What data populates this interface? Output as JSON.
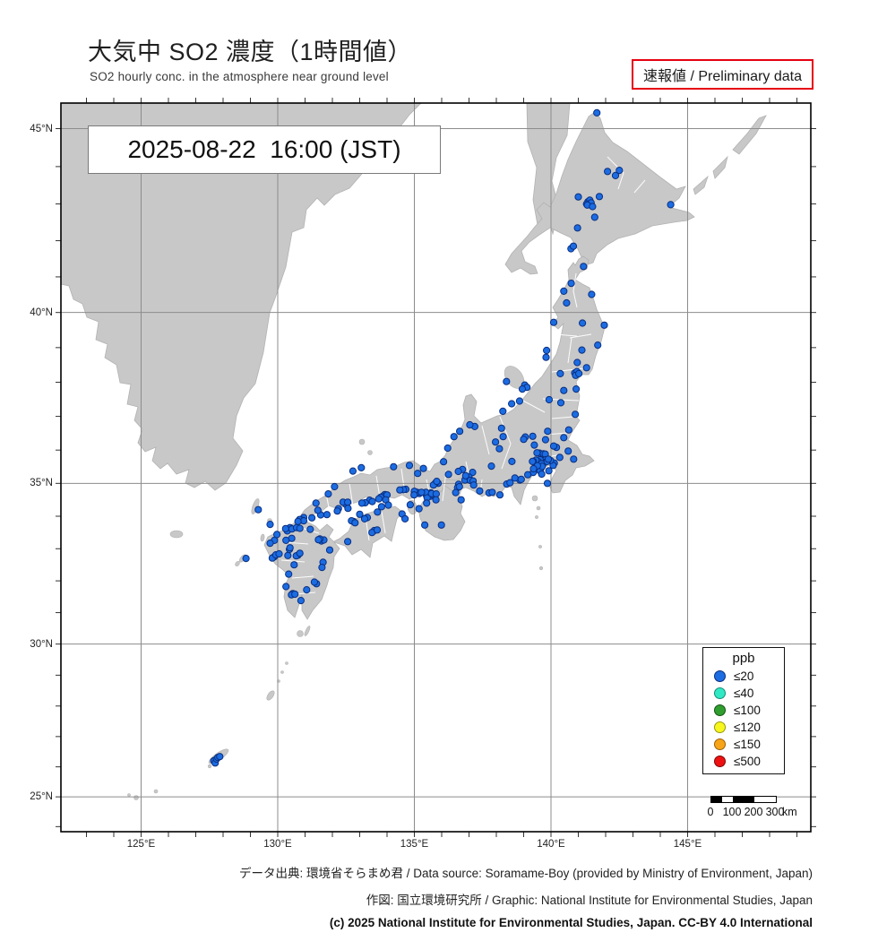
{
  "title": {
    "ja": "大気中 SO2 濃度（1時間値）",
    "en": "SO2 hourly conc. in the atmosphere near ground level"
  },
  "badge": {
    "label": "速報値 / Preliminary data",
    "border_color": "#e60012"
  },
  "timestamp": "2025-08-22  16:00 (JST)",
  "map": {
    "land_color": "#c8c8c8",
    "coast_color": "#b2b2b2",
    "grid_color": "#8c8c8c",
    "frame_color": "#000000",
    "sea_color": "#ffffff",
    "lat_labels": [
      "45°N",
      "40°N",
      "35°N",
      "30°N",
      "25°N"
    ],
    "lon_labels": [
      "125°E",
      "130°E",
      "135°E",
      "140°E",
      "145°E"
    ],
    "marker": {
      "fill": "#1c6ce2",
      "stroke": "#0a2f80"
    },
    "stations_unit": "ppb",
    "stations_class": "≤20",
    "stations_lonlat": [
      [
        141.68,
        45.41
      ],
      [
        142.07,
        43.87
      ],
      [
        142.36,
        43.76
      ],
      [
        142.5,
        43.9
      ],
      [
        144.38,
        42.98
      ],
      [
        141.35,
        43.06
      ],
      [
        141.42,
        43.1
      ],
      [
        141.3,
        43.0
      ],
      [
        141.47,
        43.03
      ],
      [
        141.33,
        42.97
      ],
      [
        141.52,
        42.93
      ],
      [
        141.0,
        43.19
      ],
      [
        141.77,
        43.2
      ],
      [
        141.6,
        42.64
      ],
      [
        140.97,
        42.35
      ],
      [
        140.73,
        41.78
      ],
      [
        140.82,
        41.85
      ],
      [
        140.74,
        40.82
      ],
      [
        141.49,
        40.51
      ],
      [
        140.47,
        40.6
      ],
      [
        141.19,
        41.29
      ],
      [
        140.1,
        39.72
      ],
      [
        140.57,
        40.27
      ],
      [
        141.15,
        39.7
      ],
      [
        141.13,
        38.93
      ],
      [
        141.95,
        39.64
      ],
      [
        141.71,
        39.07
      ],
      [
        140.87,
        38.27
      ],
      [
        140.95,
        38.31
      ],
      [
        140.9,
        38.2
      ],
      [
        141.02,
        38.25
      ],
      [
        141.3,
        38.42
      ],
      [
        140.96,
        38.57
      ],
      [
        140.34,
        38.25
      ],
      [
        139.84,
        38.92
      ],
      [
        139.82,
        38.72
      ],
      [
        140.47,
        37.76
      ],
      [
        140.36,
        37.4
      ],
      [
        140.89,
        37.06
      ],
      [
        139.93,
        37.49
      ],
      [
        140.92,
        37.8
      ],
      [
        139.04,
        37.92
      ],
      [
        139.12,
        37.85
      ],
      [
        138.95,
        37.8
      ],
      [
        138.85,
        37.45
      ],
      [
        138.56,
        37.37
      ],
      [
        138.24,
        37.15
      ],
      [
        138.37,
        38.02
      ],
      [
        140.47,
        36.37
      ],
      [
        140.65,
        36.6
      ],
      [
        140.2,
        36.08
      ],
      [
        140.1,
        36.12
      ],
      [
        140.63,
        35.97
      ],
      [
        139.88,
        36.56
      ],
      [
        139.8,
        36.31
      ],
      [
        139.06,
        36.39
      ],
      [
        139.0,
        36.32
      ],
      [
        139.33,
        36.41
      ],
      [
        139.39,
        36.15
      ],
      [
        139.65,
        35.86
      ],
      [
        139.58,
        35.91
      ],
      [
        139.72,
        35.89
      ],
      [
        139.49,
        35.92
      ],
      [
        139.79,
        35.88
      ],
      [
        140.12,
        35.61
      ],
      [
        140.08,
        35.54
      ],
      [
        139.98,
        35.69
      ],
      [
        139.92,
        35.38
      ],
      [
        140.83,
        35.73
      ],
      [
        140.32,
        35.78
      ],
      [
        139.87,
        35.0
      ],
      [
        139.69,
        35.69
      ],
      [
        139.75,
        35.67
      ],
      [
        139.81,
        35.71
      ],
      [
        139.7,
        35.6
      ],
      [
        139.77,
        35.63
      ],
      [
        139.86,
        35.66
      ],
      [
        139.6,
        35.71
      ],
      [
        139.54,
        35.65
      ],
      [
        139.65,
        35.59
      ],
      [
        139.9,
        35.73
      ],
      [
        139.45,
        35.7
      ],
      [
        139.35,
        35.66
      ],
      [
        139.63,
        35.45
      ],
      [
        139.55,
        35.46
      ],
      [
        139.6,
        35.38
      ],
      [
        139.68,
        35.51
      ],
      [
        139.5,
        35.53
      ],
      [
        139.66,
        35.28
      ],
      [
        139.35,
        35.33
      ],
      [
        139.15,
        35.26
      ],
      [
        139.36,
        35.44
      ],
      [
        139.32,
        35.66
      ],
      [
        138.57,
        35.66
      ],
      [
        138.86,
        35.1
      ],
      [
        138.68,
        35.16
      ],
      [
        138.38,
        34.98
      ],
      [
        138.5,
        35.02
      ],
      [
        137.73,
        34.71
      ],
      [
        137.85,
        34.73
      ],
      [
        138.13,
        34.65
      ],
      [
        138.91,
        35.12
      ],
      [
        138.19,
        36.65
      ],
      [
        138.25,
        36.4
      ],
      [
        137.97,
        36.24
      ],
      [
        138.11,
        36.04
      ],
      [
        137.82,
        35.52
      ],
      [
        137.21,
        36.7
      ],
      [
        137.03,
        36.75
      ],
      [
        136.66,
        36.56
      ],
      [
        136.45,
        36.4
      ],
      [
        136.22,
        36.06
      ],
      [
        136.07,
        35.65
      ],
      [
        136.76,
        35.42
      ],
      [
        136.61,
        35.36
      ],
      [
        137.13,
        35.33
      ],
      [
        136.9,
        35.18
      ],
      [
        136.96,
        35.12
      ],
      [
        136.85,
        35.1
      ],
      [
        137.0,
        35.19
      ],
      [
        136.88,
        35.23
      ],
      [
        137.05,
        35.09
      ],
      [
        137.15,
        35.07
      ],
      [
        137.17,
        34.95
      ],
      [
        137.39,
        34.77
      ],
      [
        136.62,
        34.97
      ],
      [
        136.58,
        34.87
      ],
      [
        136.51,
        34.72
      ],
      [
        136.71,
        34.5
      ],
      [
        136.65,
        34.9
      ],
      [
        135.87,
        35.0
      ],
      [
        136.25,
        35.27
      ],
      [
        135.77,
        35.01
      ],
      [
        135.7,
        34.95
      ],
      [
        135.82,
        35.06
      ],
      [
        135.12,
        35.3
      ],
      [
        135.33,
        35.45
      ],
      [
        135.5,
        34.69
      ],
      [
        135.56,
        34.65
      ],
      [
        135.44,
        34.64
      ],
      [
        135.61,
        34.71
      ],
      [
        135.5,
        34.59
      ],
      [
        135.42,
        34.73
      ],
      [
        135.59,
        34.61
      ],
      [
        135.66,
        34.66
      ],
      [
        135.47,
        34.56
      ],
      [
        135.63,
        34.69
      ],
      [
        135.8,
        34.68
      ],
      [
        135.79,
        34.5
      ],
      [
        135.17,
        34.23
      ],
      [
        135.38,
        33.73
      ],
      [
        135.99,
        33.73
      ],
      [
        135.18,
        34.69
      ],
      [
        135.1,
        34.73
      ],
      [
        135.26,
        34.73
      ],
      [
        135.0,
        34.76
      ],
      [
        134.99,
        34.65
      ],
      [
        134.69,
        34.82
      ],
      [
        134.6,
        34.81
      ],
      [
        134.47,
        34.8
      ],
      [
        134.82,
        35.54
      ],
      [
        134.85,
        34.35
      ],
      [
        134.24,
        35.5
      ],
      [
        135.45,
        34.4
      ],
      [
        133.06,
        35.47
      ],
      [
        132.75,
        35.37
      ],
      [
        132.08,
        34.9
      ],
      [
        131.85,
        34.68
      ],
      [
        133.92,
        34.66
      ],
      [
        133.85,
        34.61
      ],
      [
        134.0,
        34.65
      ],
      [
        133.77,
        34.58
      ],
      [
        133.7,
        34.53
      ],
      [
        133.95,
        34.5
      ],
      [
        133.36,
        34.49
      ],
      [
        133.46,
        34.45
      ],
      [
        133.2,
        34.41
      ],
      [
        133.08,
        34.4
      ],
      [
        132.46,
        34.4
      ],
      [
        132.51,
        34.35
      ],
      [
        132.39,
        34.43
      ],
      [
        132.56,
        34.43
      ],
      [
        132.57,
        34.24
      ],
      [
        132.22,
        34.23
      ],
      [
        132.18,
        34.16
      ],
      [
        131.8,
        34.05
      ],
      [
        131.57,
        34.04
      ],
      [
        131.25,
        33.95
      ],
      [
        130.95,
        33.96
      ],
      [
        131.47,
        34.18
      ],
      [
        131.4,
        34.4
      ],
      [
        134.05,
        34.34
      ],
      [
        133.8,
        34.29
      ],
      [
        133.65,
        34.13
      ],
      [
        134.55,
        34.07
      ],
      [
        134.66,
        33.92
      ],
      [
        133.28,
        33.96
      ],
      [
        133.18,
        33.92
      ],
      [
        133.0,
        34.06
      ],
      [
        132.77,
        33.84
      ],
      [
        132.7,
        33.86
      ],
      [
        132.83,
        33.8
      ],
      [
        132.56,
        33.22
      ],
      [
        133.53,
        33.56
      ],
      [
        133.45,
        33.5
      ],
      [
        133.64,
        33.58
      ],
      [
        130.87,
        33.88
      ],
      [
        130.8,
        33.9
      ],
      [
        130.95,
        33.86
      ],
      [
        130.74,
        33.84
      ],
      [
        131.19,
        33.6
      ],
      [
        131.6,
        33.24
      ],
      [
        131.69,
        33.27
      ],
      [
        131.54,
        33.3
      ],
      [
        131.49,
        33.28
      ],
      [
        131.9,
        32.96
      ],
      [
        131.66,
        32.58
      ],
      [
        131.62,
        32.42
      ],
      [
        131.42,
        31.91
      ],
      [
        131.34,
        31.96
      ],
      [
        131.06,
        31.72
      ],
      [
        130.85,
        31.38
      ],
      [
        130.55,
        31.6
      ],
      [
        130.5,
        31.56
      ],
      [
        130.63,
        31.58
      ],
      [
        130.3,
        31.82
      ],
      [
        130.4,
        32.21
      ],
      [
        130.6,
        32.5
      ],
      [
        130.74,
        32.8
      ],
      [
        130.68,
        32.78
      ],
      [
        130.81,
        32.86
      ],
      [
        130.43,
        32.98
      ],
      [
        130.45,
        33.03
      ],
      [
        130.51,
        33.32
      ],
      [
        130.3,
        33.26
      ],
      [
        129.88,
        33.26
      ],
      [
        129.97,
        33.44
      ],
      [
        129.72,
        33.17
      ],
      [
        129.87,
        32.75
      ],
      [
        129.8,
        32.71
      ],
      [
        129.93,
        32.81
      ],
      [
        130.05,
        32.84
      ],
      [
        130.37,
        32.79
      ],
      [
        130.4,
        33.59
      ],
      [
        130.45,
        33.65
      ],
      [
        130.35,
        33.55
      ],
      [
        130.52,
        33.61
      ],
      [
        130.29,
        33.62
      ],
      [
        130.69,
        33.65
      ],
      [
        130.81,
        33.63
      ],
      [
        129.29,
        34.2
      ],
      [
        129.72,
        33.75
      ],
      [
        128.84,
        32.7
      ],
      [
        127.66,
        26.2
      ],
      [
        127.71,
        26.13
      ],
      [
        127.76,
        26.26
      ],
      [
        127.81,
        26.31
      ],
      [
        127.88,
        26.34
      ]
    ]
  },
  "legend": {
    "title": "ppb",
    "entries": [
      {
        "label": "≤20",
        "fill": "#1c6ce2",
        "stroke": "#0a2f80"
      },
      {
        "label": "≤40",
        "fill": "#30e8c4",
        "stroke": "#0f8f78"
      },
      {
        "label": "≤100",
        "fill": "#2f9e2f",
        "stroke": "#145214"
      },
      {
        "label": "≤120",
        "fill": "#f7f71d",
        "stroke": "#97970f"
      },
      {
        "label": "≤150",
        "fill": "#f7a418",
        "stroke": "#9c5f06"
      },
      {
        "label": "≤500",
        "fill": "#ee1111",
        "stroke": "#7d0606"
      }
    ]
  },
  "scalebar": {
    "labels": [
      "0",
      "100",
      "200",
      "300"
    ],
    "unit": "km"
  },
  "footer": {
    "line1": "データ出典: 環境省そらまめ君 / Data source: Soramame-Boy (provided by Ministry of Environment, Japan)",
    "line2": "作図: 国立環境研究所 / Graphic: National Institute for Environmental Studies, Japan",
    "line3": "(c) 2025 National Institute for Environmental Studies, Japan. CC-BY 4.0 International"
  }
}
